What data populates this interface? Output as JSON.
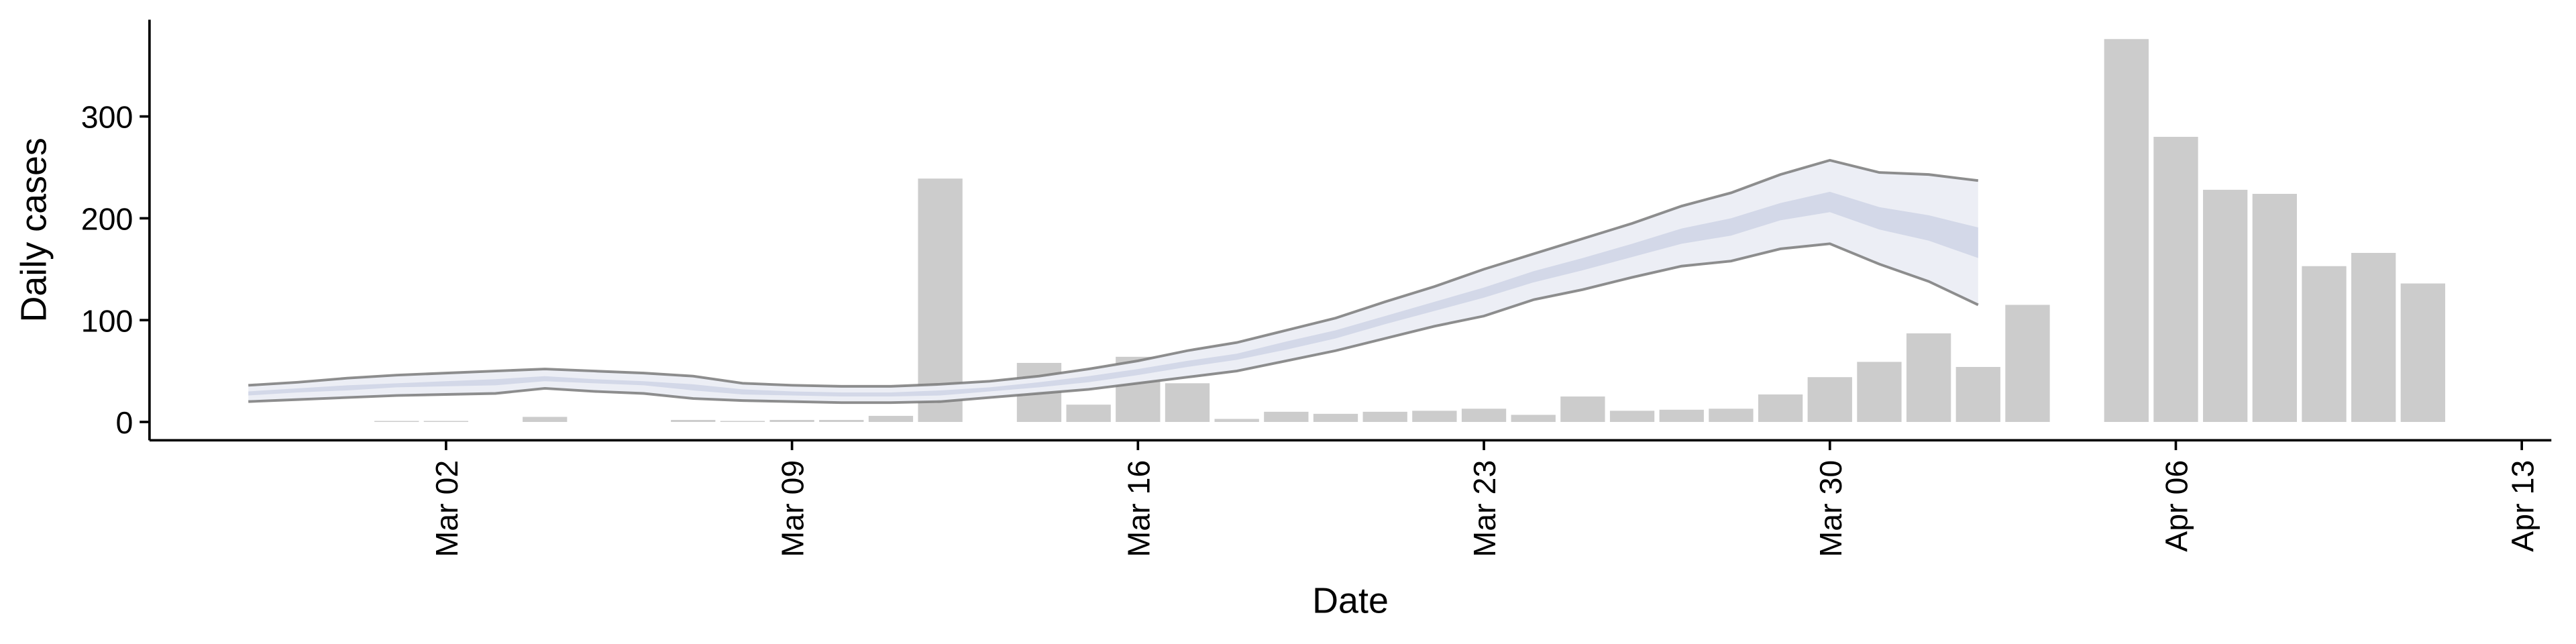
{
  "chart_data": {
    "type": "bar",
    "x_label": "Date",
    "y_label": "Daily cases",
    "x": [
      "Mar 01",
      "Mar 02",
      "Mar 04",
      "Mar 07",
      "Mar 08",
      "Mar 09",
      "Mar 10",
      "Mar 11",
      "Mar 12",
      "Mar 14",
      "Mar 15",
      "Mar 16",
      "Mar 17",
      "Mar 18",
      "Mar 19",
      "Mar 20",
      "Mar 21",
      "Mar 22",
      "Mar 23",
      "Mar 24",
      "Mar 25",
      "Mar 26",
      "Mar 27",
      "Mar 28",
      "Mar 29",
      "Mar 30",
      "Mar 31",
      "Apr 01",
      "Apr 02",
      "Apr 03",
      "Apr 05",
      "Apr 06",
      "Apr 07",
      "Apr 08",
      "Apr 09",
      "Apr 10",
      "Apr 11"
    ],
    "values": [
      1,
      1,
      5,
      2,
      1,
      2,
      2,
      6,
      239,
      58,
      17,
      64,
      38,
      3,
      10,
      8,
      10,
      11,
      13,
      7,
      25,
      11,
      12,
      13,
      27,
      44,
      59,
      87,
      54,
      115,
      376,
      280,
      228,
      224,
      153,
      166,
      136
    ],
    "color": "#cccccc",
    "band_x": [
      "Feb 27",
      "Feb 28",
      "Feb 29",
      "Mar 01",
      "Mar 02",
      "Mar 03",
      "Mar 04",
      "Mar 05",
      "Mar 06",
      "Mar 07",
      "Mar 08",
      "Mar 09",
      "Mar 10",
      "Mar 11",
      "Mar 12",
      "Mar 13",
      "Mar 14",
      "Mar 15",
      "Mar 16",
      "Mar 17",
      "Mar 18",
      "Mar 19",
      "Mar 20",
      "Mar 21",
      "Mar 22",
      "Mar 23",
      "Mar 24",
      "Mar 25",
      "Mar 26",
      "Mar 27",
      "Mar 28",
      "Mar 29",
      "Mar 30",
      "Mar 31",
      "Apr 01",
      "Apr 02"
    ],
    "bands": [
      {
        "color": "#eceef5",
        "line_color": "#7a7a7a",
        "lower": [
          20,
          22,
          24,
          26,
          27,
          28,
          33,
          30,
          28,
          23,
          21,
          20,
          19,
          19,
          20,
          24,
          28,
          32,
          38,
          44,
          50,
          60,
          70,
          82,
          94,
          104,
          120,
          130,
          142,
          153,
          158,
          170,
          175,
          155,
          138,
          115
        ],
        "upper": [
          36,
          39,
          43,
          46,
          48,
          50,
          52,
          50,
          48,
          45,
          38,
          36,
          35,
          35,
          37,
          40,
          45,
          52,
          60,
          70,
          78,
          90,
          102,
          118,
          133,
          150,
          165,
          180,
          195,
          212,
          225,
          243,
          257,
          245,
          243,
          237
        ]
      },
      {
        "color": "#d3d8e8",
        "lower": [
          26,
          29,
          31,
          34,
          35,
          36,
          40,
          38,
          36,
          31,
          27,
          26,
          25,
          25,
          26,
          30,
          34,
          39,
          46,
          54,
          61,
          71,
          82,
          96,
          109,
          122,
          137,
          149,
          162,
          175,
          183,
          198,
          206,
          189,
          178,
          161
        ],
        "upper": [
          30,
          33,
          36,
          38,
          40,
          42,
          45,
          42,
          40,
          37,
          32,
          30,
          29,
          29,
          31,
          34,
          39,
          45,
          52,
          60,
          67,
          79,
          90,
          104,
          118,
          132,
          148,
          161,
          175,
          190,
          200,
          215,
          226,
          211,
          203,
          191
        ]
      }
    ],
    "xlim": [
      "Feb 25",
      "Apr 13"
    ],
    "xticks": [
      "Mar 02",
      "Mar 09",
      "Mar 16",
      "Mar 23",
      "Mar 30",
      "Apr 06",
      "Apr 13"
    ],
    "ylim": [
      -18,
      395
    ],
    "yticks": [
      0,
      100,
      200,
      300
    ]
  }
}
